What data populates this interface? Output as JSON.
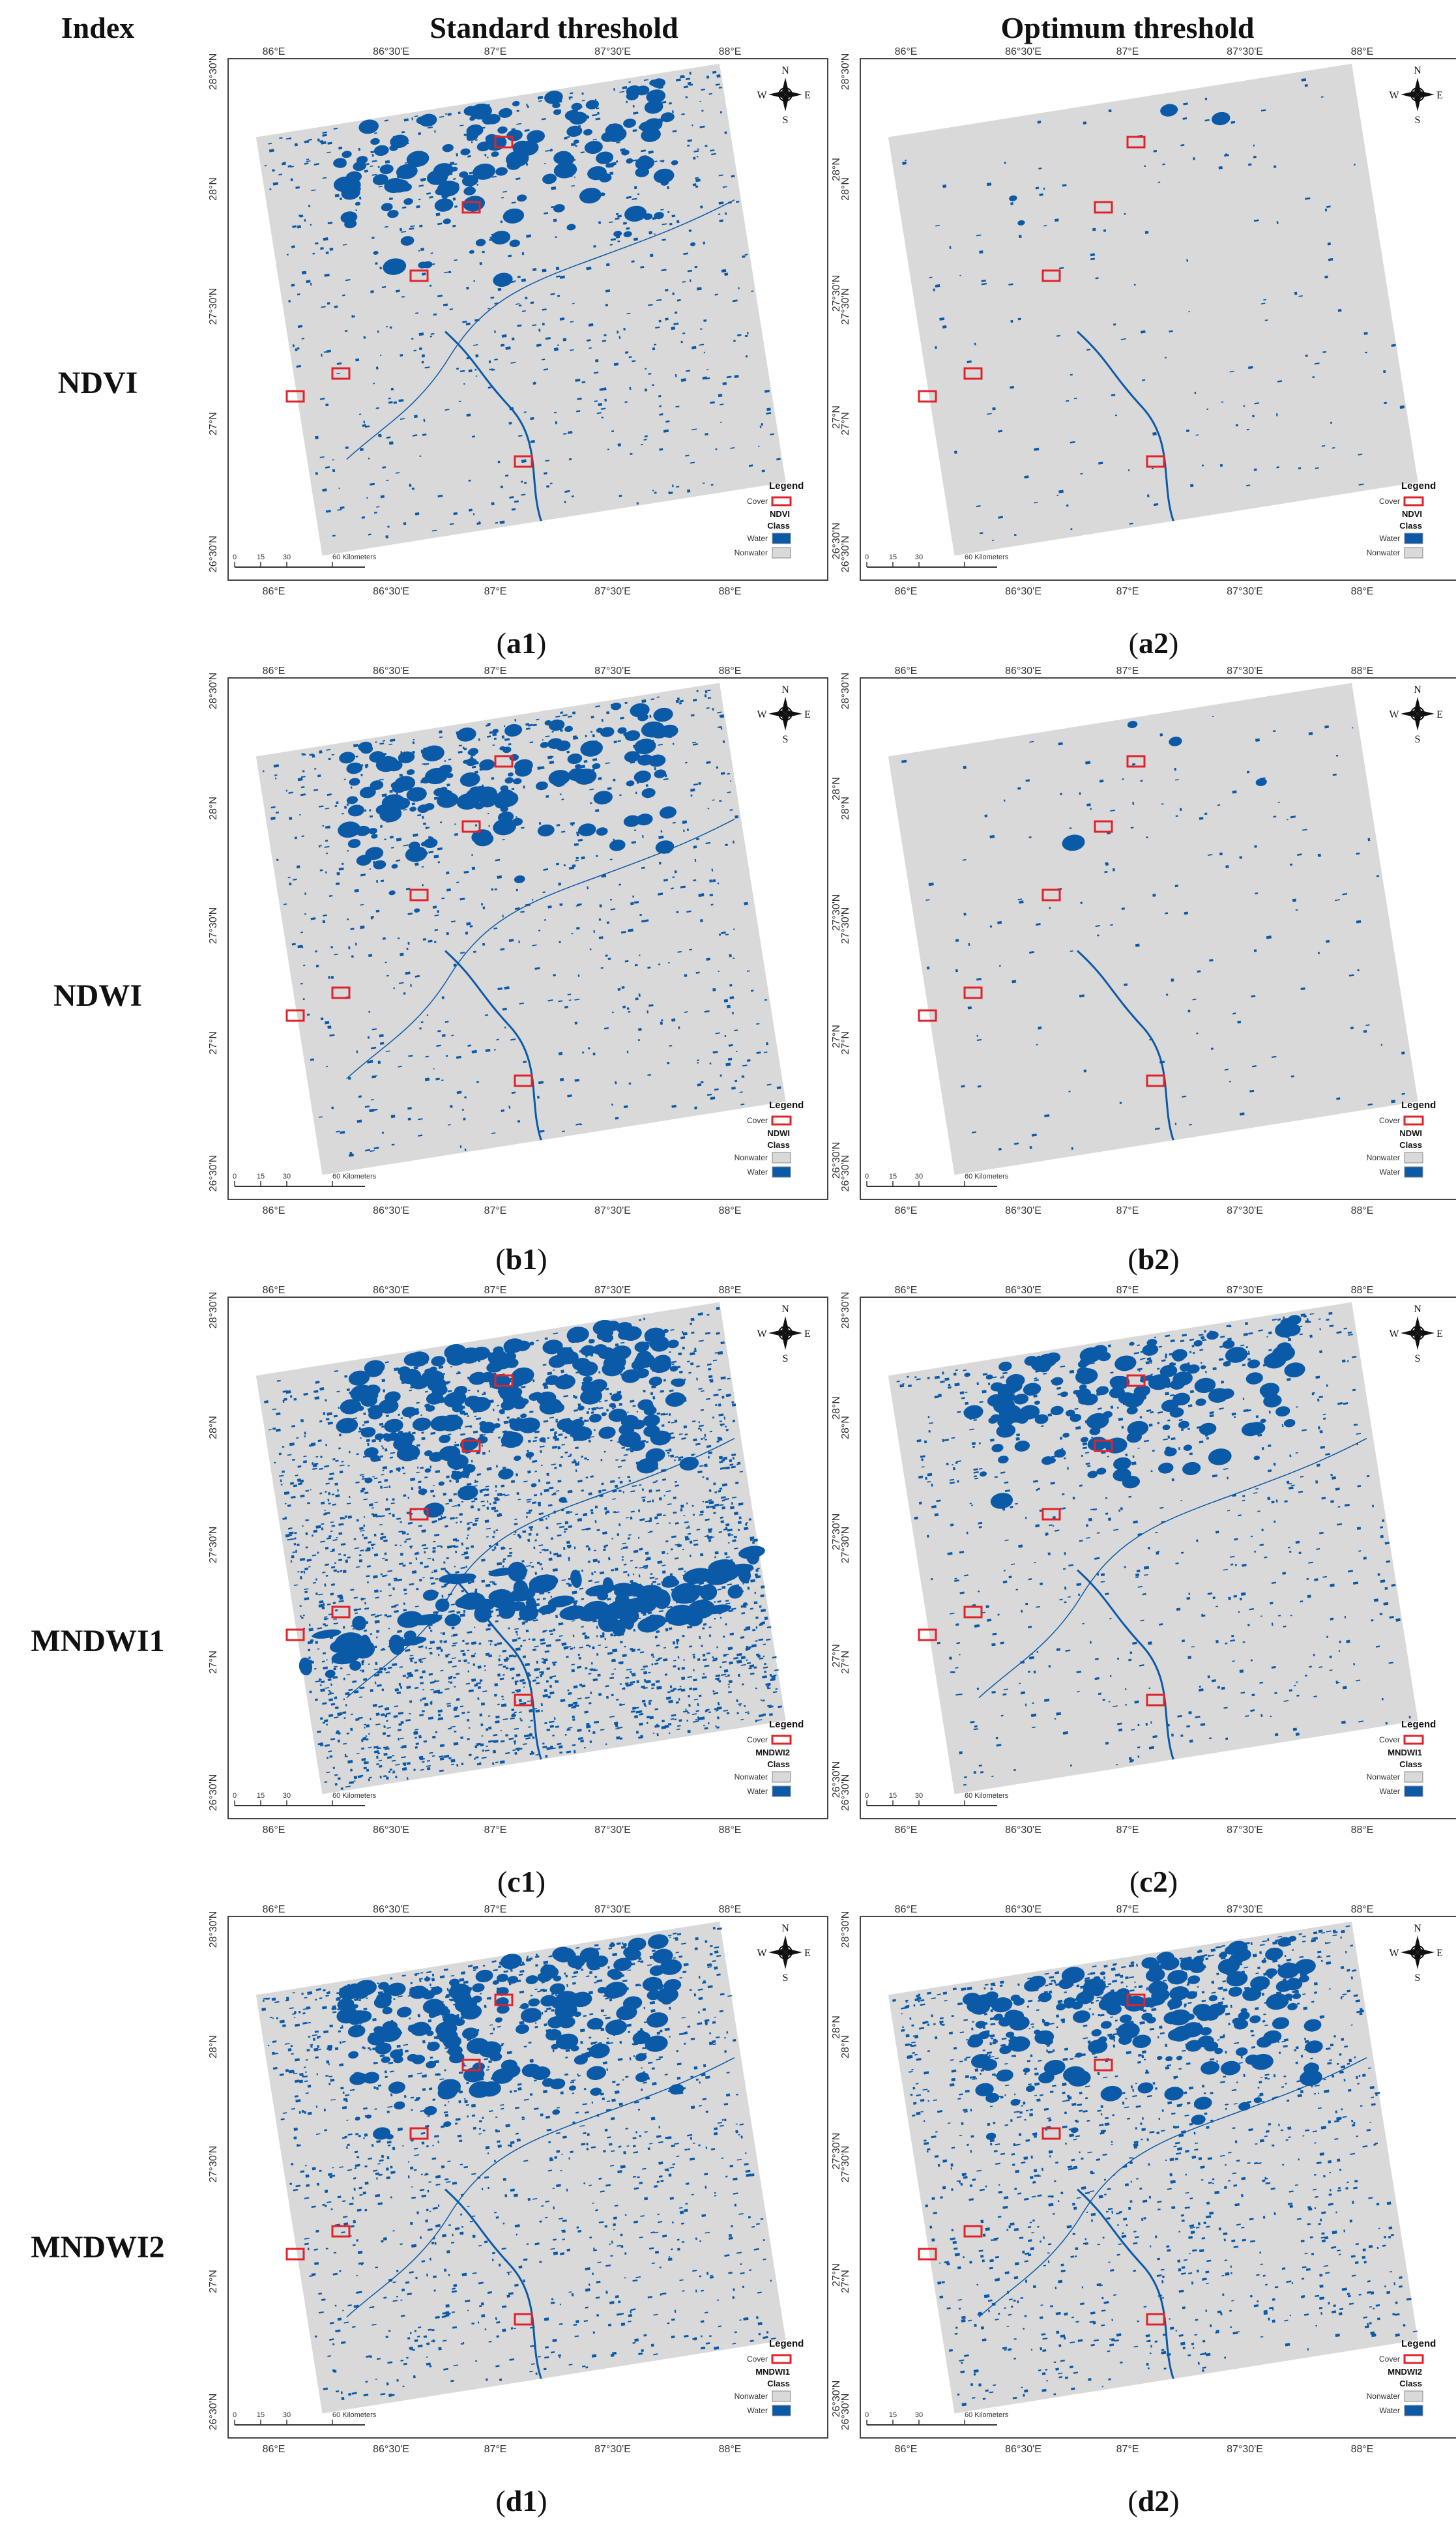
{
  "header": {
    "index": "Index",
    "standard": "Standard threshold",
    "optimum": "Optimum threshold"
  },
  "rows": [
    {
      "index": "NDVI",
      "legend_name": "NDVI",
      "class_order": [
        "Water",
        "Nonwater"
      ],
      "left": {
        "panel_letter": "a",
        "panel_num": "1",
        "density": "medium",
        "coverage": 0.45
      },
      "right": {
        "panel_letter": "a",
        "panel_num": "2",
        "density": "sparse",
        "coverage": 0.05
      }
    },
    {
      "index": "NDWI",
      "legend_name": "NDWI",
      "class_order": [
        "Nonwater",
        "Water"
      ],
      "left": {
        "panel_letter": "b",
        "panel_num": "1",
        "density": "medium",
        "coverage": 0.5
      },
      "right": {
        "panel_letter": "b",
        "panel_num": "2",
        "density": "sparse",
        "coverage": 0.08
      }
    },
    {
      "index": "MNDWI1",
      "legend_name_left": "MNDWI2",
      "legend_name_right": "MNDWI1",
      "class_order": [
        "Nonwater",
        "Water"
      ],
      "left": {
        "panel_letter": "c",
        "panel_num": "1",
        "density": "dense",
        "coverage": 0.9
      },
      "right": {
        "panel_letter": "c",
        "panel_num": "2",
        "density": "medium",
        "coverage": 0.4
      }
    },
    {
      "index": "MNDWI2",
      "legend_name_left": "MNDWI1",
      "legend_name_right": "MNDWI2",
      "class_order": [
        "Nonwater",
        "Water"
      ],
      "left": {
        "panel_letter": "d",
        "panel_num": "1",
        "density": "medium-high",
        "coverage": 0.55
      },
      "right": {
        "panel_letter": "d",
        "panel_num": "2",
        "density": "medium-high",
        "coverage": 0.55
      }
    }
  ],
  "map_common": {
    "top_ticks": [
      "86°E",
      "86°30'E",
      "87°E",
      "87°30'E",
      "88°E"
    ],
    "bottom_ticks": [
      "86°E",
      "86°30'E",
      "87°E",
      "87°30'E",
      "88°E"
    ],
    "left_ticks": [
      "28°30'N",
      "28°N",
      "27°30'N",
      "27°N",
      "26°30'N"
    ],
    "right_ticks": [
      "28°N",
      "27°30'N",
      "27°N",
      "26°30'N"
    ],
    "legend_title": "Legend",
    "legend_cover": "Cover",
    "legend_class": "Class",
    "scale_ticks": [
      "0",
      "15",
      "30",
      "60 Kilometers"
    ],
    "compass": {
      "n": "N",
      "s": "S",
      "e": "E",
      "w": "W"
    }
  },
  "colors": {
    "water": "#0b5aa8",
    "nonwater": "#d9d9d9",
    "cover_box": "#e0232a",
    "frame": "#444444"
  }
}
